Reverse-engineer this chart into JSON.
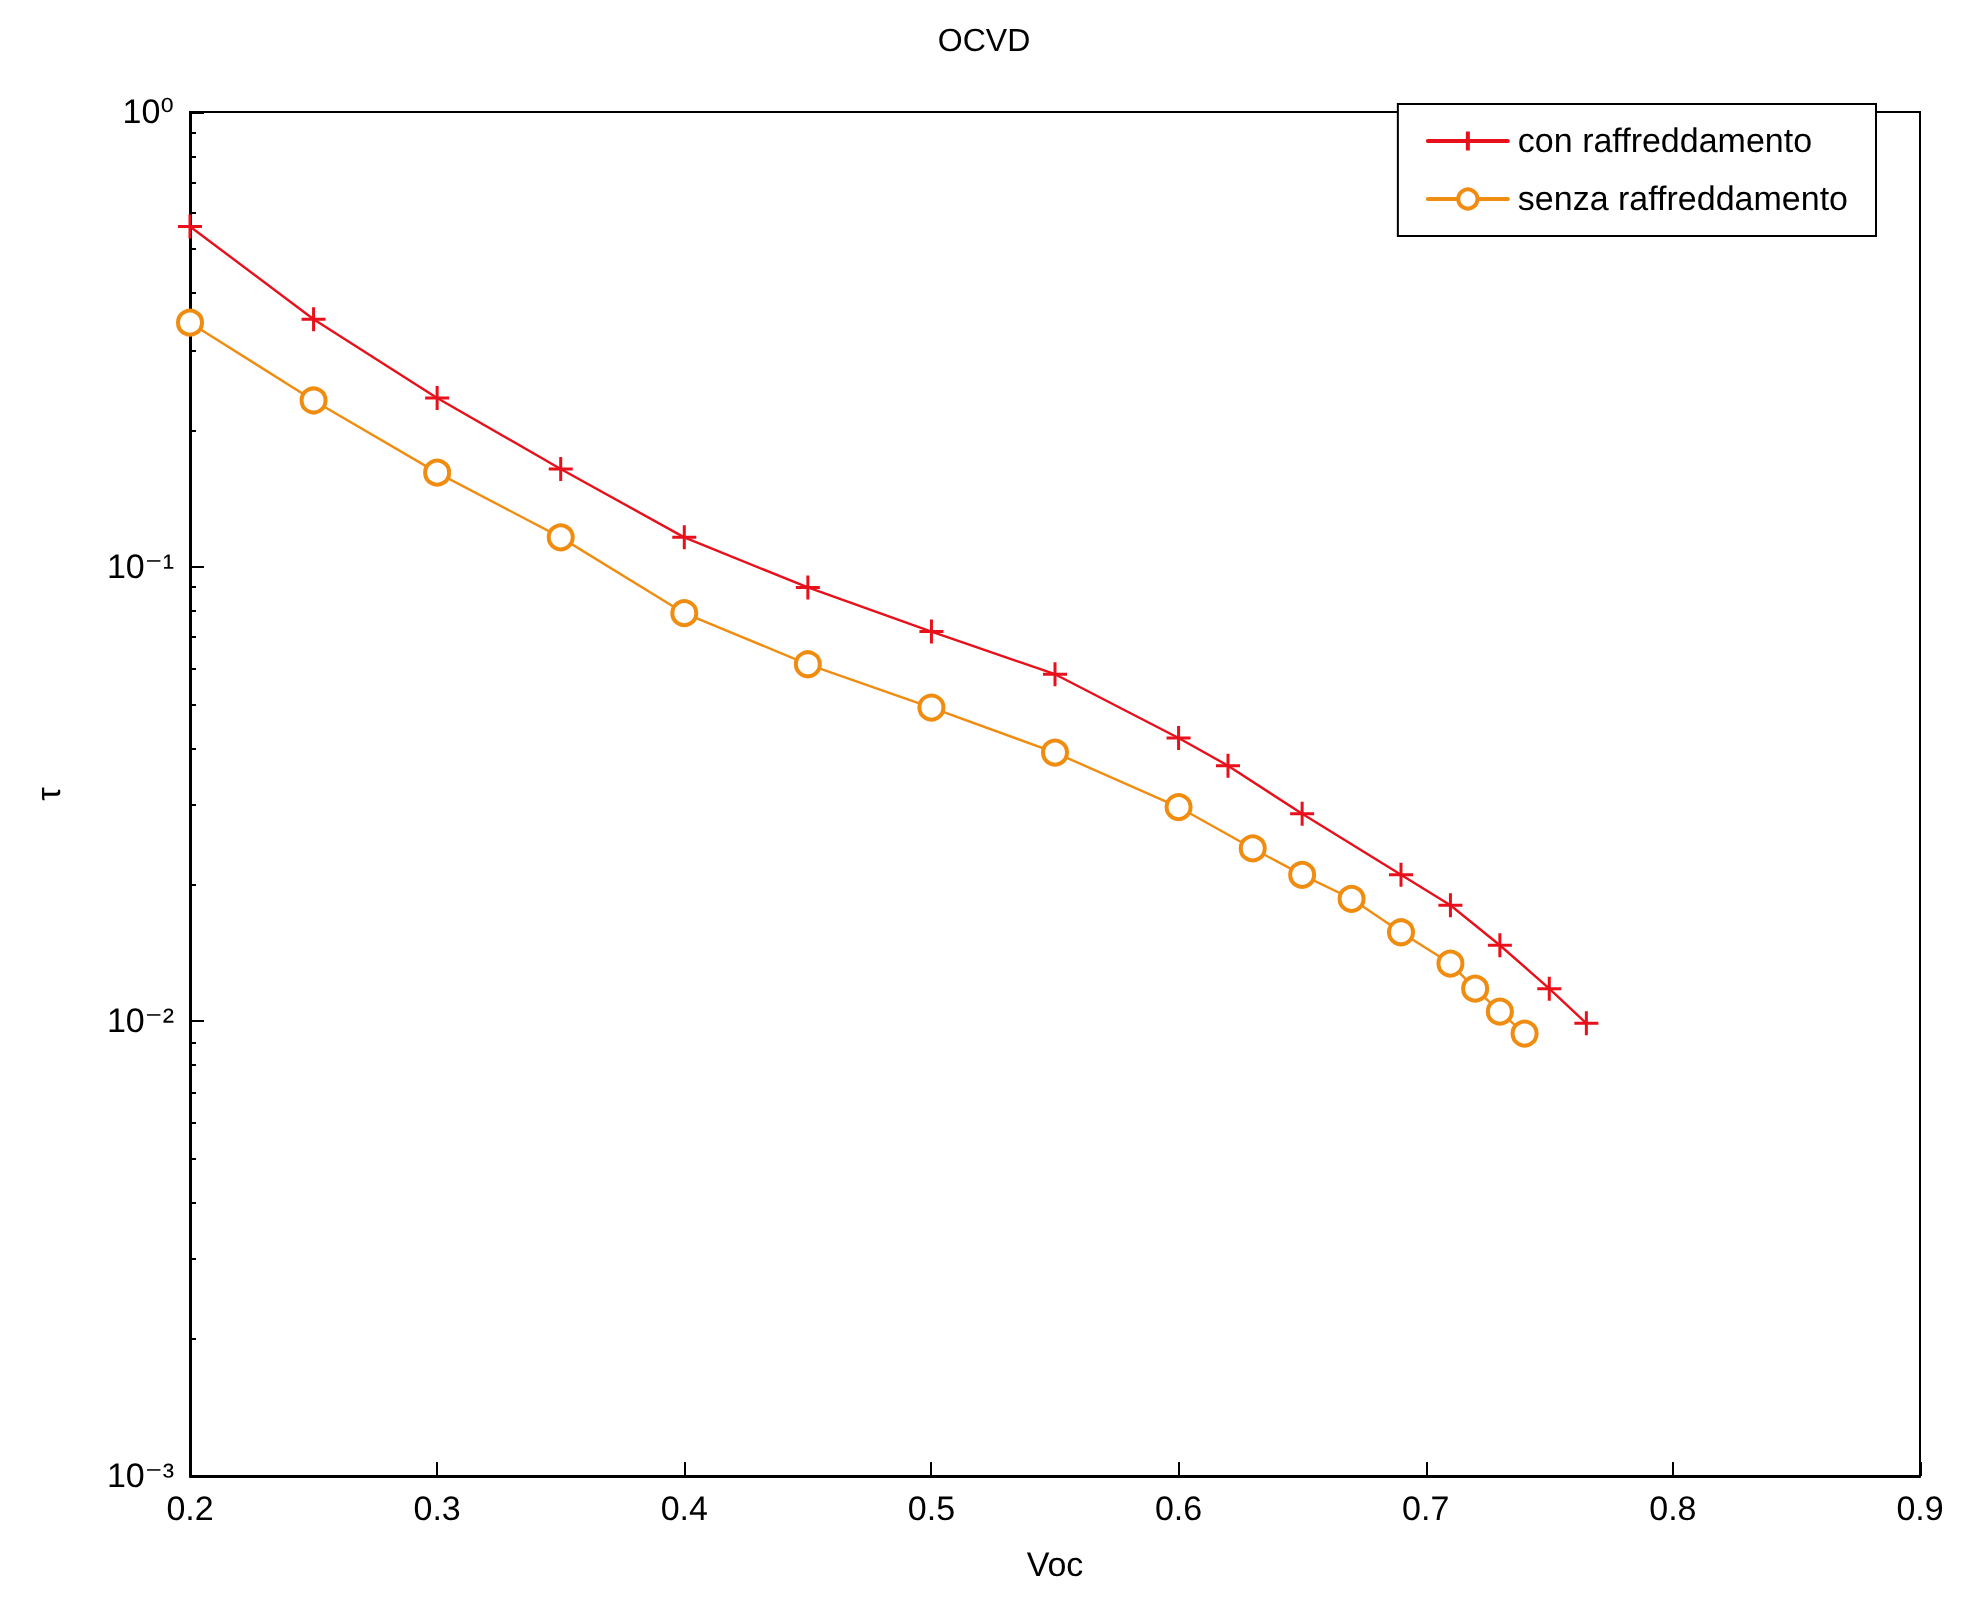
{
  "chart_data": {
    "type": "line",
    "title": "OCVD",
    "xlabel": "Voc",
    "ylabel": "τ",
    "log": "y",
    "grid": false,
    "legend": "top right",
    "xlim": [
      0.2,
      0.9
    ],
    "xticks": [
      0.2,
      0.3,
      0.4,
      0.5,
      0.6,
      0.7,
      0.8,
      0.9
    ],
    "ylim": [
      0.001,
      1
    ],
    "yticks": [
      {
        "value": 0.001,
        "label": "10⁻³"
      },
      {
        "value": 0.01,
        "label": "10⁻²"
      },
      {
        "value": 0.1,
        "label": "10⁻¹"
      },
      {
        "value": 1,
        "label": "10⁰"
      }
    ],
    "series": [
      {
        "name": "con raffreddamento",
        "color": "#e8101a",
        "marker": "cross",
        "x": [
          0.2,
          0.25,
          0.3,
          0.35,
          0.4,
          0.45,
          0.5,
          0.55,
          0.6,
          0.62,
          0.65,
          0.69,
          0.71,
          0.73,
          0.75,
          0.765
        ],
        "values": [
          0.56,
          0.35,
          0.235,
          0.164,
          0.116,
          0.09,
          0.072,
          0.058,
          0.042,
          0.0365,
          0.0286,
          0.021,
          0.018,
          0.0147,
          0.0118,
          0.0099
        ]
      },
      {
        "name": "senza raffreddamento",
        "color": "#f08c10",
        "marker": "circle",
        "x": [
          0.2,
          0.25,
          0.3,
          0.35,
          0.4,
          0.45,
          0.5,
          0.55,
          0.6,
          0.63,
          0.65,
          0.67,
          0.69,
          0.71,
          0.72,
          0.73,
          0.74
        ],
        "values": [
          0.344,
          0.232,
          0.161,
          0.116,
          0.079,
          0.061,
          0.049,
          0.039,
          0.0296,
          0.024,
          0.021,
          0.0186,
          0.0157,
          0.0134,
          0.0118,
          0.0105,
          0.0094
        ]
      }
    ]
  }
}
